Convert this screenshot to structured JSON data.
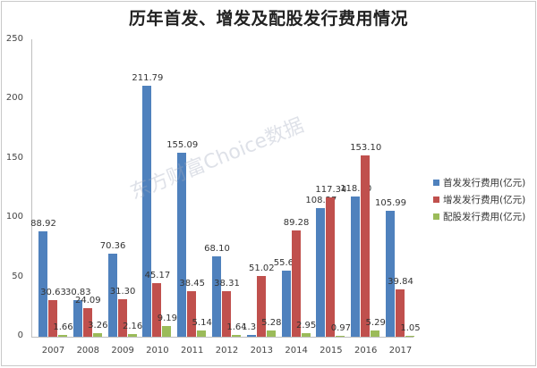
{
  "chart_data": {
    "type": "bar",
    "title": "历年首发、增发及配股发行费用情况",
    "xlabel": "",
    "ylabel": "",
    "ylim": [
      0,
      250
    ],
    "yticks": [
      0,
      50,
      100,
      150,
      200,
      250
    ],
    "grid": false,
    "legend_position": "right",
    "categories": [
      "2007",
      "2008",
      "2009",
      "2010",
      "2011",
      "2012",
      "2013",
      "2014",
      "2015",
      "2016",
      "2017"
    ],
    "series": [
      {
        "name": "首发发行费用(亿元)",
        "color": "#4f81bd",
        "values": [
          88.92,
          30.83,
          70.36,
          211.79,
          155.09,
          68.1,
          1.31,
          55.63,
          108.27,
          118.3,
          105.99
        ]
      },
      {
        "name": "增发发行费用(亿元)",
        "color": "#c0504d",
        "values": [
          30.63,
          24.09,
          31.3,
          45.17,
          38.45,
          38.31,
          51.02,
          89.28,
          117.34,
          153.1,
          39.84
        ]
      },
      {
        "name": "配股发行费用(亿元)",
        "color": "#9bbb59",
        "values": [
          1.66,
          3.26,
          2.16,
          9.19,
          5.14,
          1.64,
          5.28,
          2.95,
          0.97,
          5.29,
          1.05
        ]
      }
    ],
    "value_labels": {
      "0": [
        "88.92",
        "30.83",
        "70.36",
        "211.79",
        "155.09",
        "68.10",
        "1.31",
        "55.63",
        "108.27",
        "118.30",
        "105.99"
      ],
      "1": [
        "30.63",
        "24.09",
        "31.30",
        "45.17",
        "38.45",
        "38.31",
        "51.02",
        "89.28",
        "117.34",
        "153.10",
        "39.84"
      ],
      "2": [
        "1.66",
        "3.26",
        "2.16",
        "9.19",
        "5.14",
        "1.64",
        "5.28",
        "2.95",
        "0.97",
        "5.29",
        "1.05"
      ]
    }
  },
  "watermark": "东方财富Choice数据"
}
